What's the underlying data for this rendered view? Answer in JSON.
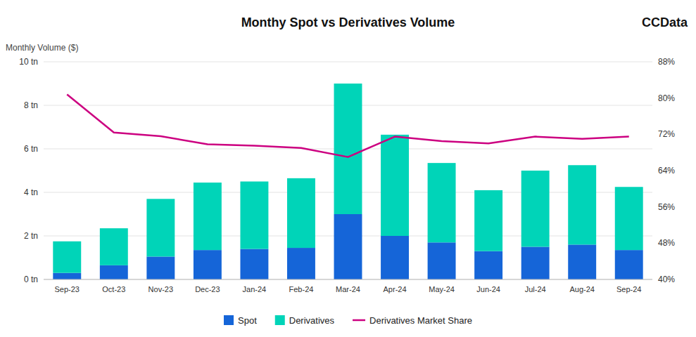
{
  "chart_data": {
    "type": "bar",
    "stacked": true,
    "title": "Monthy Spot vs Derivatives Volume",
    "ylabel": "Monthly Volume ($)",
    "annotations": [
      "CCData"
    ],
    "categories": [
      "Sep-23",
      "Oct-23",
      "Nov-23",
      "Dec-23",
      "Jan-24",
      "Feb-24",
      "Mar-24",
      "Apr-24",
      "May-24",
      "Jun-24",
      "Jul-24",
      "Aug-24",
      "Sep-24"
    ],
    "series": [
      {
        "name": "Spot",
        "color": "#1565d8",
        "values": [
          0.3,
          0.65,
          1.05,
          1.35,
          1.4,
          1.45,
          3.0,
          2.0,
          1.7,
          1.3,
          1.5,
          1.6,
          1.35
        ]
      },
      {
        "name": "Derivatives",
        "color": "#00d4b8",
        "values": [
          1.45,
          1.7,
          2.65,
          3.1,
          3.1,
          3.2,
          6.0,
          4.65,
          3.65,
          2.8,
          3.5,
          3.65,
          2.9
        ]
      },
      {
        "name": "Derivatives Market Share",
        "type": "line",
        "axis": "y2",
        "color": "#cc0080",
        "values": [
          80.8,
          72.4,
          71.6,
          69.8,
          69.5,
          69.0,
          67.0,
          71.5,
          70.5,
          70.0,
          71.5,
          71.0,
          71.5
        ]
      }
    ],
    "ylim": [
      0,
      10
    ],
    "yticks": [
      {
        "value": 0,
        "label": "0 tn"
      },
      {
        "value": 2,
        "label": "2 tn"
      },
      {
        "value": 4,
        "label": "4 tn"
      },
      {
        "value": 6,
        "label": "6 tn"
      },
      {
        "value": 8,
        "label": "8 tn"
      },
      {
        "value": 10,
        "label": "10 tn"
      }
    ],
    "y2lim": [
      40,
      88
    ],
    "y2ticks": [
      {
        "value": 40,
        "label": "40%"
      },
      {
        "value": 48,
        "label": "48%"
      },
      {
        "value": 56,
        "label": "56%"
      },
      {
        "value": 64,
        "label": "64%"
      },
      {
        "value": 72,
        "label": "72%"
      },
      {
        "value": 80,
        "label": "80%"
      },
      {
        "value": 88,
        "label": "88%"
      }
    ],
    "grid": true,
    "legend": "bottom"
  }
}
